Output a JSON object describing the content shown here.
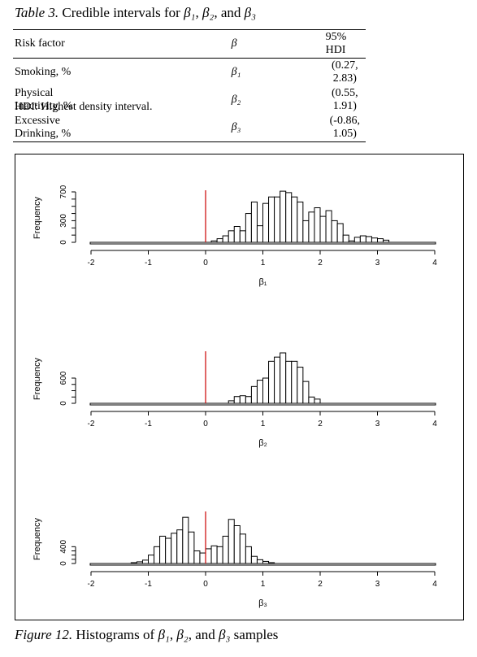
{
  "table": {
    "label": "Table 3.",
    "caption_prefix": "Credible intervals for",
    "caption_b1": "β₁",
    "caption_sep1": ",",
    "caption_b2": "β₂",
    "caption_sep2": ", and",
    "caption_b3": "β₃",
    "headers": [
      "Risk factor",
      "β",
      "95% HDI"
    ],
    "rows": [
      {
        "factor": "Smoking, %",
        "beta": "β₁",
        "hdi": "(0.27, 2.83)"
      },
      {
        "factor": "Physical Inactivity, %",
        "beta": "β₂",
        "hdi": "(0.55, 1.91)"
      },
      {
        "factor": "Excessive Drinking, %",
        "beta": "β₃",
        "hdi": "(-0.86, 1.05)"
      }
    ],
    "note": "HDI: Highest density interval."
  },
  "figure": {
    "label": "Figure 12.",
    "caption_prefix": "Histograms of",
    "caption_b1": "β₁",
    "caption_sep1": ",",
    "caption_b2": "β₂",
    "caption_sep2": ", and",
    "caption_b3": "β₃",
    "caption_suffix": "samples"
  },
  "colors": {
    "reference_line": "#cc0000",
    "bars": "#ffffff",
    "outline": "#000000"
  },
  "chart_data": [
    {
      "type": "bar",
      "ylabel": "Frequency",
      "xlabel": "β₁",
      "xlim": [
        -2,
        4
      ],
      "x_ticks": [
        "-2",
        "-1",
        "0",
        "1",
        "2",
        "3",
        "4"
      ],
      "y_ticks": [
        "0",
        "300",
        "700"
      ],
      "y_tick_values": [
        0,
        300,
        700
      ],
      "ylim": [
        0,
        700
      ],
      "reference_line_x": 0,
      "bin_start": 0.1,
      "bin_width": 0.1,
      "values": [
        20,
        50,
        90,
        160,
        220,
        160,
        400,
        560,
        230,
        540,
        630,
        630,
        710,
        690,
        630,
        560,
        300,
        420,
        480,
        360,
        440,
        300,
        260,
        100,
        20,
        70,
        90,
        80,
        60,
        50,
        30
      ]
    },
    {
      "type": "bar",
      "ylabel": "Frequency",
      "xlabel": "β₂",
      "xlim": [
        -2,
        4
      ],
      "x_ticks": [
        "-2",
        "-1",
        "0",
        "1",
        "2",
        "3",
        "4"
      ],
      "y_ticks": [
        "0",
        "600"
      ],
      "y_tick_values": [
        0,
        600
      ],
      "ylim": [
        0,
        1200
      ],
      "reference_line_x": 0,
      "bin_start": 0.4,
      "bin_width": 0.1,
      "values": [
        60,
        160,
        180,
        160,
        400,
        550,
        600,
        1000,
        1100,
        1200,
        1000,
        1000,
        860,
        520,
        150,
        100
      ]
    },
    {
      "type": "bar",
      "ylabel": "Frequency",
      "xlabel": "β₃",
      "xlim": [
        -2,
        4
      ],
      "x_ticks": [
        "-2",
        "-1",
        "0",
        "1",
        "2",
        "3",
        "4"
      ],
      "y_ticks": [
        "0",
        "400"
      ],
      "y_tick_values": [
        0,
        400
      ],
      "ylim": [
        0,
        1200
      ],
      "reference_line_x": 0,
      "bin_start": -1.3,
      "bin_width": 0.1,
      "values": [
        20,
        40,
        80,
        200,
        400,
        650,
        600,
        720,
        800,
        1100,
        750,
        300,
        250,
        350,
        420,
        400,
        650,
        1050,
        900,
        700,
        400,
        170,
        90,
        50,
        20
      ]
    }
  ]
}
